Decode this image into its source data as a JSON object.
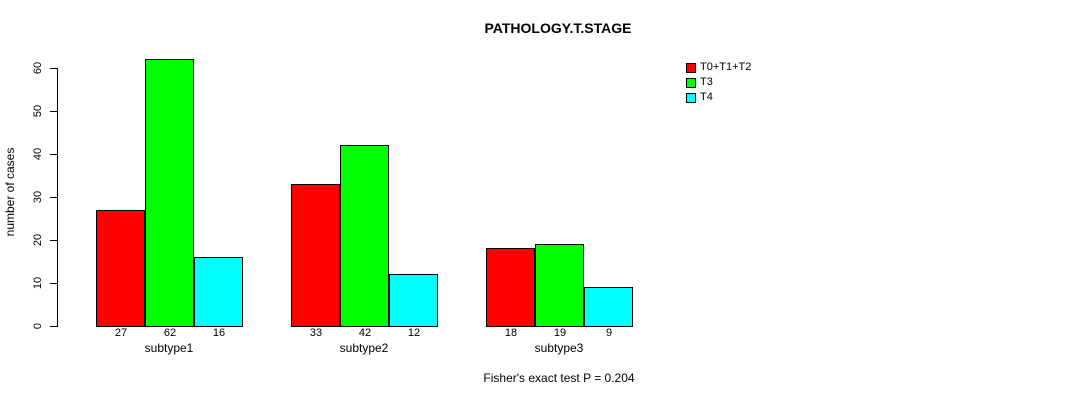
{
  "chart_data": {
    "type": "bar",
    "title": "PATHOLOGY.T.STAGE",
    "ylabel": "number of cases",
    "xlabel": "Fisher's exact test P = 0.204",
    "categories": [
      "subtype1",
      "subtype2",
      "subtype3"
    ],
    "series": [
      {
        "name": "T0+T1+T2",
        "color": "#ff0000",
        "values": [
          27,
          33,
          18
        ]
      },
      {
        "name": "T3",
        "color": "#00ff00",
        "values": [
          62,
          42,
          19
        ]
      },
      {
        "name": "T4",
        "color": "#00ffff",
        "values": [
          16,
          12,
          9
        ]
      }
    ],
    "bar_value_labels": [
      [
        27,
        62,
        16
      ],
      [
        33,
        42,
        12
      ],
      [
        18,
        19,
        9
      ]
    ],
    "yticks": [
      0,
      10,
      20,
      30,
      40,
      50,
      60
    ],
    "ylim": [
      0,
      62
    ],
    "grid": false,
    "legend_position": "top-right",
    "background": "#ffffff",
    "bar_border_color": "#000000",
    "axis_color": "#000000",
    "text_color": "#000000"
  }
}
